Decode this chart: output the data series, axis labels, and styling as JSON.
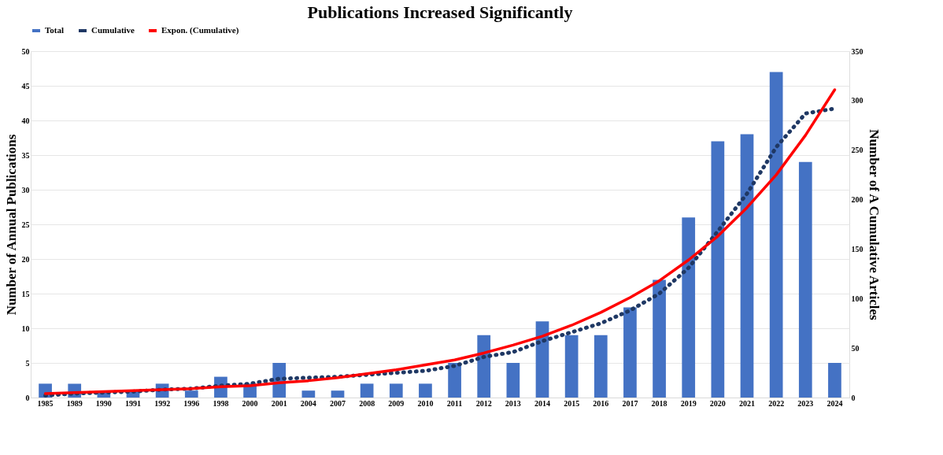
{
  "chart_data": {
    "type": "bar",
    "title": "Publications Increased Significantly",
    "ylabel": "Number of Annual Publications",
    "y2label": "Number of A Cumulative Articles",
    "categories": [
      "1985",
      "1989",
      "1990",
      "1991",
      "1992",
      "1996",
      "1998",
      "2000",
      "2001",
      "2004",
      "2007",
      "2008",
      "2009",
      "2010",
      "2011",
      "2012",
      "2013",
      "2014",
      "2015",
      "2016",
      "2017",
      "2018",
      "2019",
      "2020",
      "2021",
      "2022",
      "2023",
      "2024"
    ],
    "series": [
      {
        "name": "Total",
        "color": "#4472c4",
        "values": [
          2,
          2,
          1,
          1,
          2,
          1,
          3,
          2,
          5,
          1,
          1,
          2,
          2,
          2,
          5,
          9,
          5,
          11,
          9,
          9,
          13,
          17,
          26,
          37,
          38,
          47,
          34,
          5
        ]
      },
      {
        "name": "Cumulative",
        "type": "line",
        "axis": "y2",
        "line_style": "dotted",
        "color": "#1f3864",
        "values": [
          2,
          4,
          5,
          6,
          8,
          9,
          12,
          14,
          19,
          20,
          21,
          23,
          25,
          27,
          32,
          41,
          46,
          57,
          66,
          75,
          88,
          105,
          131,
          168,
          206,
          253,
          287,
          292
        ]
      },
      {
        "name": "Expon. (Cumulative)",
        "type": "line",
        "axis": "y2",
        "line_style": "solid",
        "color": "#ff0000",
        "values": [
          4,
          5,
          6,
          7,
          8,
          9,
          11,
          12,
          15,
          17,
          20,
          24,
          28,
          33,
          38,
          45,
          53,
          62,
          73,
          86,
          101,
          118,
          139,
          163,
          192,
          225,
          265,
          311
        ]
      }
    ],
    "ylim": [
      0,
      50
    ],
    "yticks": [
      0,
      5,
      10,
      15,
      20,
      25,
      30,
      35,
      40,
      45,
      50
    ],
    "y2lim": [
      0,
      350
    ],
    "y2ticks": [
      0,
      50,
      100,
      150,
      200,
      250,
      300,
      350
    ],
    "grid": "y",
    "legend": "top"
  }
}
